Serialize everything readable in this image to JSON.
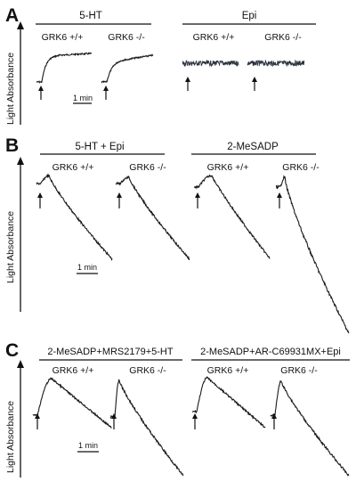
{
  "figure": {
    "panels": [
      {
        "letter": "A",
        "y_label": "Light Absorbance",
        "groups": [
          {
            "label": "5-HT",
            "genotypes": [
              "GRK6 +/+",
              "GRK6 -/-"
            ]
          },
          {
            "label": "Epi",
            "genotypes": [
              "GRK6 +/+",
              "GRK6 -/-"
            ]
          }
        ],
        "scale_bar": "1 min"
      },
      {
        "letter": "B",
        "y_label": "Light Absorbance",
        "groups": [
          {
            "label": "5-HT + Epi",
            "genotypes": [
              "GRK6 +/+",
              "GRK6 -/-"
            ]
          },
          {
            "label": "2-MeSADP",
            "genotypes": [
              "GRK6 +/+",
              "GRK6 -/-"
            ]
          }
        ],
        "scale_bar": "1 min"
      },
      {
        "letter": "C",
        "y_label": "Light Absorbance",
        "groups": [
          {
            "label": "2-MeSADP+MRS2179+5-HT",
            "genotypes": [
              "GRK6 +/+",
              "GRK6 -/-"
            ]
          },
          {
            "label": "2-MeSADP+AR-C69931MX+Epi",
            "genotypes": [
              "GRK6 +/+",
              "GRK6 -/-"
            ]
          }
        ],
        "scale_bar": "1 min"
      }
    ],
    "colors": {
      "trace": "#1a1a1a",
      "epi_trace": "#2b3440",
      "text": "#111111"
    }
  }
}
